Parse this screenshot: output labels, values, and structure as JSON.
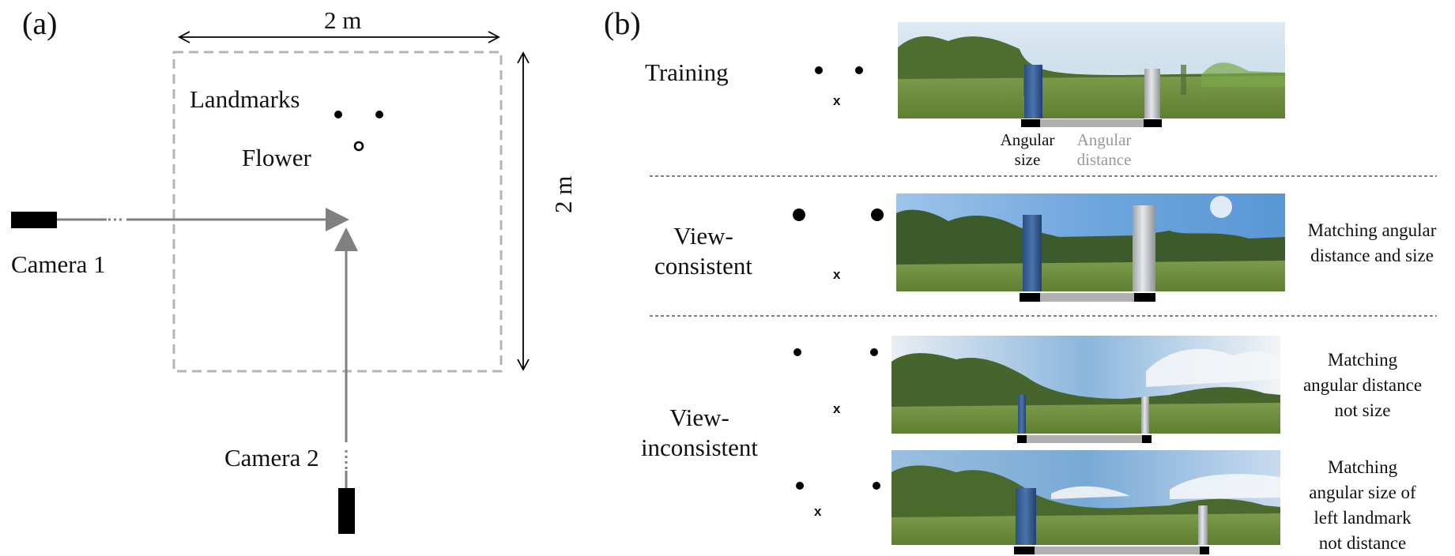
{
  "panel_a": {
    "label": "(a)",
    "width_label": "2 m",
    "height_label": "2 m",
    "landmarks_label": "Landmarks",
    "flower_label": "Flower",
    "camera1_label": "Camera 1",
    "camera2_label": "Camera 2"
  },
  "panel_b": {
    "label": "(b)",
    "rows": [
      {
        "name": "Training",
        "line1": "Training",
        "line2": ""
      },
      {
        "name": "View-consistent",
        "line1": "View-",
        "line2": "consistent"
      },
      {
        "name": "View-inconsistent",
        "line1": "View-",
        "line2": "inconsistent"
      }
    ],
    "angular_size": {
      "line1": "Angular",
      "line2": "size"
    },
    "angular_distance": {
      "line1": "Angular",
      "line2": "distance"
    },
    "notes": [
      {
        "lines": [
          "Matching angular",
          "distance and size"
        ]
      },
      {
        "lines": [
          "Matching",
          "angular distance",
          "not size"
        ]
      },
      {
        "lines": [
          "Matching",
          "angular size of",
          "left landmark",
          "not distance"
        ]
      }
    ],
    "marker_symbol": "x"
  },
  "colors": {
    "arena_border": "#b4b4b4",
    "arrow": "#808080",
    "camera": "#000000",
    "divider": "#555555",
    "bar_gray": "#b0b0b0",
    "bar_black": "#000000",
    "blue_landmark": "#3a5f95",
    "gray_landmark": "#c6cacc",
    "angular_distance_text": "#999999"
  }
}
